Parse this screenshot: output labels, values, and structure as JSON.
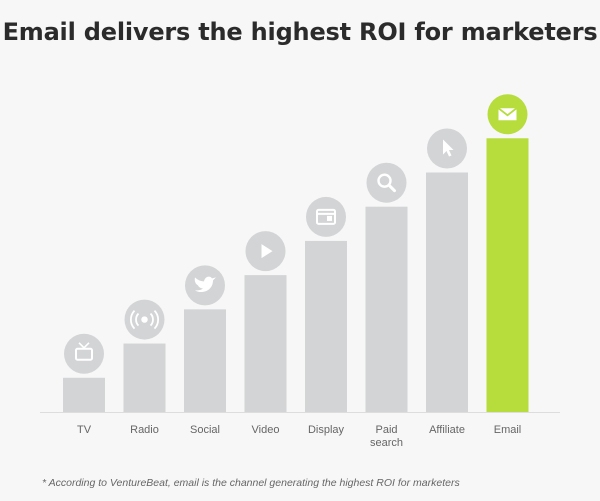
{
  "title": "Email delivers the highest ROI for marketers",
  "footnote": "* According to VentureBeat, email is the channel generating the highest ROI for marketers",
  "colors": {
    "bar": "#d2d4d6",
    "highlight": "#b6dd3c",
    "icon_bg": "#d2d4d6",
    "icon_fg": "#ffffff",
    "baseline": "#dddddd"
  },
  "chart_data": {
    "type": "bar",
    "title": "Email delivers the highest ROI for marketers",
    "categories": [
      "TV",
      "Radio",
      "Social",
      "Video",
      "Display",
      "Paid search",
      "Affiliate",
      "Email"
    ],
    "label_lines": [
      [
        "TV"
      ],
      [
        "Radio"
      ],
      [
        "Social"
      ],
      [
        "Video"
      ],
      [
        "Display"
      ],
      [
        "Paid",
        "search"
      ],
      [
        "Affiliate"
      ],
      [
        "Email"
      ]
    ],
    "values": [
      1,
      2,
      3,
      4,
      5,
      6,
      7,
      8
    ],
    "icons": [
      "tv-icon",
      "radio-icon",
      "twitter-icon",
      "play-icon",
      "display-icon",
      "search-icon",
      "cursor-icon",
      "email-icon"
    ],
    "highlight": "Email",
    "xlabel": "",
    "ylabel": "",
    "ylim": [
      0,
      8.3
    ],
    "grid": false,
    "legend": "none"
  }
}
